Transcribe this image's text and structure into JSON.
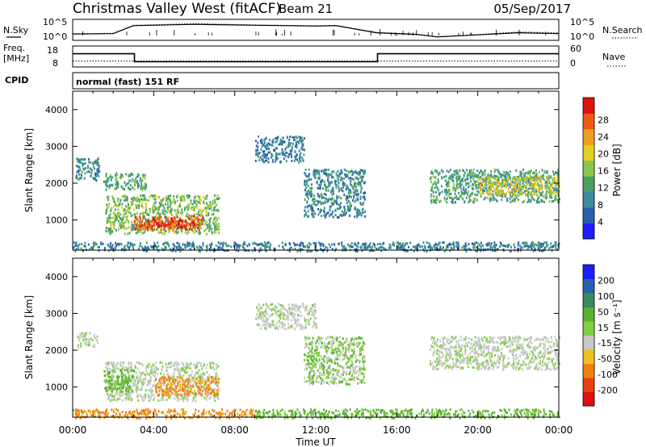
{
  "header": {
    "station": "Christmas Valley West (fitACF)",
    "beam": "Beam 21",
    "date": "05/Sep/2017"
  },
  "labels": {
    "nsky": "N.Sky",
    "nsearch": "N.Search",
    "freq": "Freq.",
    "freq_unit": "[MHz]",
    "nave": "Nave",
    "cpid": "CPID",
    "mode": "normal (fast) 151 RF",
    "left_ticks_noise": [
      "10^5",
      "10^0"
    ],
    "right_ticks_noise": [
      "10^5",
      "10^0"
    ],
    "left_ticks_freq": [
      "18",
      "8"
    ],
    "right_ticks_nave": [
      "60",
      "0"
    ]
  },
  "chart_data": [
    {
      "type": "line",
      "panel": "noise",
      "x": [
        0,
        2,
        3,
        6,
        9,
        12,
        13,
        15,
        17,
        18,
        20,
        22,
        24
      ],
      "series": [
        {
          "name": "N.Sky",
          "values": [
            1.5,
            1.6,
            3.5,
            3.8,
            3.6,
            3.4,
            3.5,
            1.8,
            1.4,
            0.8,
            1.3,
            1.8,
            1.6
          ]
        },
        {
          "name": "N.Search",
          "values": [
            1.6,
            1.7,
            3.6,
            4.0,
            3.7,
            3.5,
            3.6,
            1.9,
            1.5,
            0.9,
            1.4,
            2.0,
            1.8
          ]
        }
      ]
    },
    {
      "type": "line",
      "panel": "freq-nave",
      "x": [
        0,
        3.05,
        3.05,
        15.05,
        15.05,
        24
      ],
      "series": [
        {
          "name": "Freq.",
          "values": [
            14.3,
            14.3,
            10.5,
            10.5,
            14.3,
            14.3
          ]
        },
        {
          "name": "Nave",
          "values": [
            17,
            17,
            17,
            17,
            17,
            17
          ]
        }
      ]
    },
    {
      "type": "heatmap",
      "panel": "power",
      "xlabel": "",
      "ylabel": "Slant Range [km]",
      "xlim": [
        0,
        24
      ],
      "ylim": [
        180,
        4500
      ],
      "yticks": [
        1000,
        2000,
        3000,
        4000
      ],
      "colorbar": {
        "label": "Power [dB]",
        "ticks": [
          4,
          8,
          12,
          16,
          20,
          24,
          28
        ],
        "colors": [
          "#1c1cff",
          "#2a5fb0",
          "#3c8aa0",
          "#4aa060",
          "#88c84a",
          "#e0d020",
          "#f0a020",
          "#f05a10",
          "#e01010"
        ]
      },
      "regions": [
        {
          "t0": 1.6,
          "t1": 7.2,
          "r0": 650,
          "r1": 1700,
          "level": 14
        },
        {
          "t0": 3.0,
          "t1": 6.4,
          "r0": 760,
          "r1": 1150,
          "level": 24
        },
        {
          "t0": 3.5,
          "t1": 6.0,
          "r0": 820,
          "r1": 1020,
          "level": 28
        },
        {
          "t0": 0.1,
          "t1": 1.3,
          "r0": 2100,
          "r1": 2700,
          "level": 9
        },
        {
          "t0": 1.5,
          "t1": 3.6,
          "r0": 1850,
          "r1": 2300,
          "level": 12
        },
        {
          "t0": 9.0,
          "t1": 11.4,
          "r0": 2600,
          "r1": 3300,
          "level": 8
        },
        {
          "t0": 11.4,
          "t1": 14.4,
          "r0": 1100,
          "r1": 2400,
          "level": 9
        },
        {
          "t0": 17.6,
          "t1": 24.0,
          "r0": 1500,
          "r1": 2400,
          "level": 11
        },
        {
          "t0": 20.0,
          "t1": 24.0,
          "r0": 1700,
          "r1": 2200,
          "level": 18
        },
        {
          "t0": 0.0,
          "t1": 24.0,
          "r0": 180,
          "r1": 420,
          "level": 8
        }
      ]
    },
    {
      "type": "heatmap",
      "panel": "velocity",
      "xlabel": "Time UT",
      "ylabel": "Slant Range [km]",
      "xlim": [
        0,
        24
      ],
      "ylim": [
        180,
        4500
      ],
      "yticks": [
        1000,
        2000,
        3000,
        4000
      ],
      "xticks": [
        "00:00",
        "04:00",
        "08:00",
        "12:00",
        "16:00",
        "20:00",
        "00:00"
      ],
      "colorbar": {
        "label": "Velocity [m s⁻¹]",
        "ticks": [
          200,
          100,
          50,
          15,
          -15,
          -50,
          -100,
          -200
        ],
        "colors": [
          "#1c1cff",
          "#2a5fb0",
          "#3a8a60",
          "#5ab030",
          "#80d040",
          "#c8c8c8",
          "#f0c020",
          "#f08010",
          "#e84010",
          "#e01010"
        ]
      },
      "regions": [
        {
          "t0": 1.6,
          "t1": 7.2,
          "r0": 650,
          "r1": 1700,
          "level": 0
        },
        {
          "t0": 1.5,
          "t1": 3.0,
          "r0": 900,
          "r1": 1500,
          "level": 20
        },
        {
          "t0": 4.0,
          "t1": 7.2,
          "r0": 800,
          "r1": 1300,
          "level": -40
        },
        {
          "t0": 0.2,
          "t1": 1.2,
          "r0": 2100,
          "r1": 2500,
          "level": 0
        },
        {
          "t0": 9.0,
          "t1": 12.0,
          "r0": 2600,
          "r1": 3300,
          "level": 0
        },
        {
          "t0": 11.4,
          "t1": 14.4,
          "r0": 1100,
          "r1": 2400,
          "level": 10
        },
        {
          "t0": 17.6,
          "t1": 24.0,
          "r0": 1500,
          "r1": 2400,
          "level": 0
        },
        {
          "t0": 0.0,
          "t1": 9.0,
          "r0": 180,
          "r1": 420,
          "level": -40
        },
        {
          "t0": 9.0,
          "t1": 24.0,
          "r0": 180,
          "r1": 420,
          "level": 20
        }
      ]
    }
  ]
}
